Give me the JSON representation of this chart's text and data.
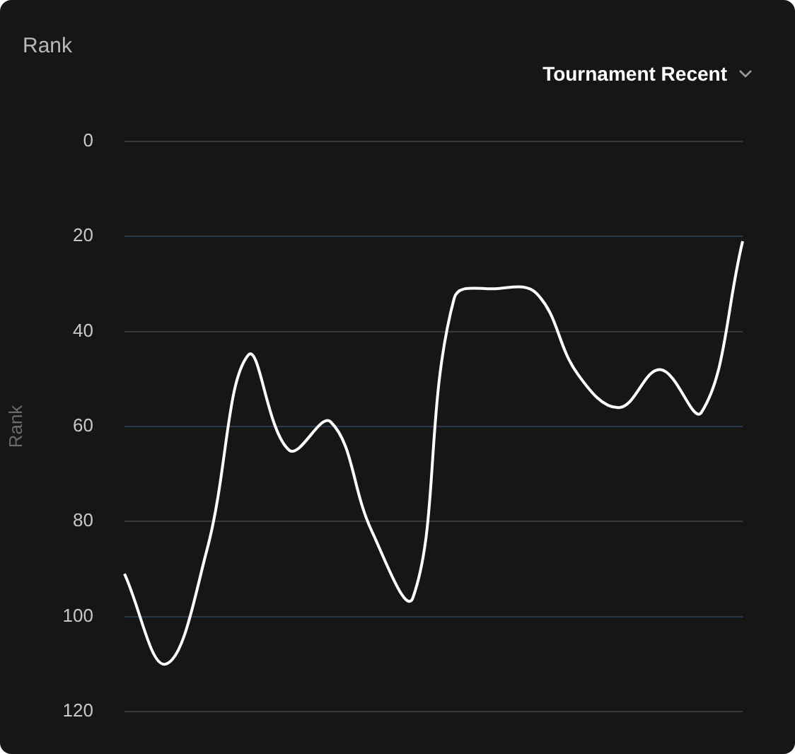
{
  "chart_data": {
    "type": "line",
    "title": "Rank",
    "subtitle": "Tournament Recent",
    "ylabel": "Rank",
    "categories": [
      null,
      null,
      null,
      null,
      null,
      null,
      null,
      null,
      null,
      null,
      null,
      null,
      null,
      null,
      null,
      null
    ],
    "series": [
      {
        "color": "#ffffff",
        "values": [
          91,
          110,
          86,
          45,
          65,
          59,
          82,
          96,
          33,
          31,
          32,
          49,
          56,
          48,
          57,
          21
        ]
      }
    ],
    "ylim": [
      120,
      0
    ],
    "yticks": [
      0,
      20,
      40,
      60,
      80,
      100,
      120
    ],
    "grid": "y",
    "legend": false,
    "marker": "none",
    "line_style": "solid"
  }
}
